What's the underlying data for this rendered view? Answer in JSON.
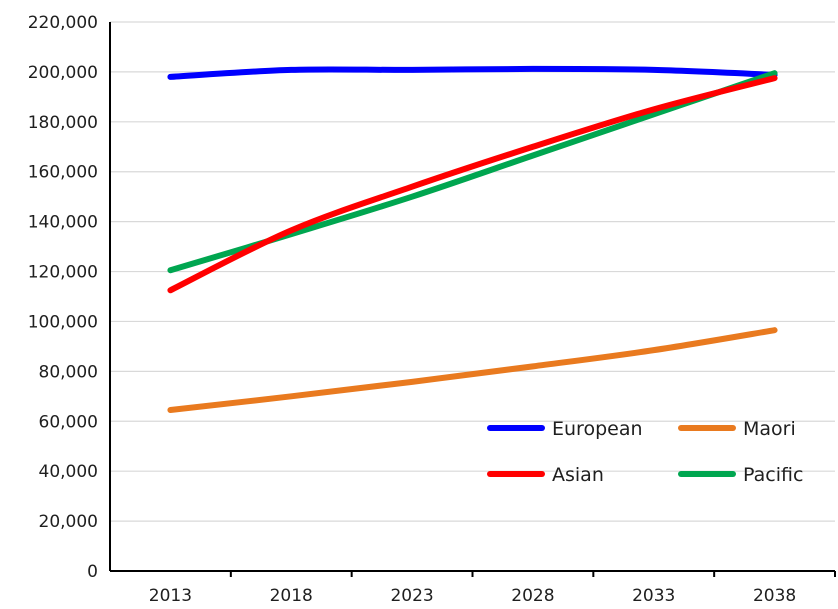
{
  "chart_data": {
    "type": "line",
    "title": "",
    "xlabel": "",
    "ylabel": "",
    "x": [
      "2013",
      "2018",
      "2023",
      "2028",
      "2033",
      "2038"
    ],
    "ylim": [
      0,
      220000
    ],
    "yticks": [
      0,
      20000,
      40000,
      60000,
      80000,
      100000,
      120000,
      140000,
      160000,
      180000,
      200000,
      220000
    ],
    "ytick_labels": [
      "0",
      "20,000",
      "40,000",
      "60,000",
      "80,000",
      "100,000",
      "120,000",
      "140,000",
      "160,000",
      "180,000",
      "200,000",
      "220,000"
    ],
    "grid": true,
    "legend_position": "bottom-right",
    "series": [
      {
        "name": "European",
        "color": "#0000ff",
        "values": [
          198000,
          200800,
          200800,
          201200,
          200800,
          198800
        ]
      },
      {
        "name": "Maori",
        "color": "#e97a1f",
        "values": [
          64500,
          70000,
          75800,
          82000,
          88500,
          96500
        ]
      },
      {
        "name": "Asian",
        "color": "#ff0000",
        "values": [
          112500,
          136500,
          154000,
          170000,
          185000,
          197500
        ]
      },
      {
        "name": "Pacific",
        "color": "#00a650",
        "values": [
          120500,
          135000,
          150000,
          166500,
          183000,
          199500
        ]
      }
    ]
  }
}
